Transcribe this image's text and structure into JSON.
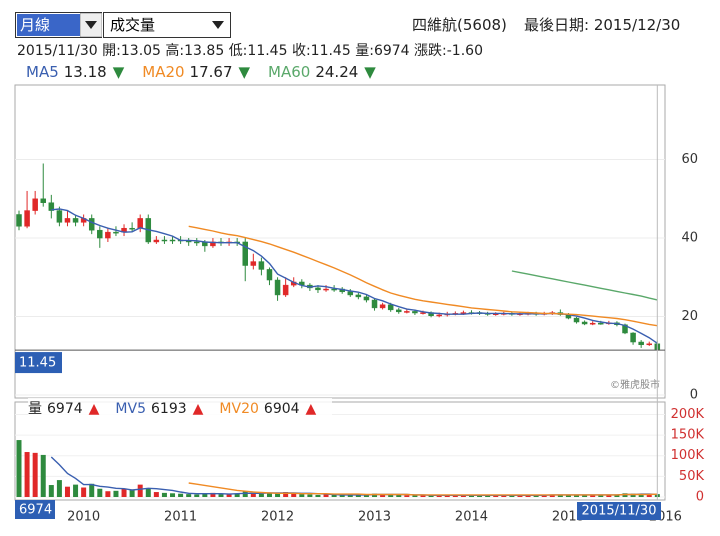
{
  "controls": {
    "period": "月線",
    "indicator": "成交量"
  },
  "header": {
    "stock": "四維航(5608)",
    "last_date_label": "最後日期:",
    "last_date": "2015/12/30",
    "date": "2015/11/30",
    "open_label": "開:",
    "high_label": "高:",
    "low_label": "低:",
    "close_label": "收:",
    "volume_label": "量:",
    "change_label": "漲跌:",
    "change": "-1.60"
  },
  "watermark": "©雅虎股市",
  "chart_data": [
    {
      "type": "candlestick",
      "categories": [
        null,
        null,
        null,
        null,
        null,
        null,
        null,
        null,
        "2010",
        null,
        null,
        null,
        null,
        null,
        null,
        null,
        null,
        null,
        null,
        null,
        "2011",
        null,
        null,
        null,
        null,
        null,
        null,
        null,
        null,
        null,
        null,
        null,
        "2012",
        null,
        null,
        null,
        null,
        null,
        null,
        null,
        null,
        null,
        null,
        null,
        "2013",
        null,
        null,
        null,
        null,
        null,
        null,
        null,
        null,
        null,
        null,
        null,
        "2014",
        null,
        null,
        null,
        null,
        null,
        null,
        null,
        null,
        null,
        null,
        null,
        "2015",
        null,
        null,
        null,
        null,
        null,
        null,
        null,
        null,
        null,
        null,
        null,
        "2016"
      ],
      "open": [
        46,
        43,
        47,
        50,
        49,
        47,
        44,
        45,
        44,
        45,
        42,
        40,
        41.5,
        41.5,
        42.5,
        42.5,
        45,
        39,
        39.5,
        39.5,
        39.5,
        39.3,
        39,
        39,
        38,
        39,
        38.8,
        39,
        39,
        33,
        34,
        32,
        29.3,
        25.5,
        28,
        28.8,
        28,
        27.3,
        26.8,
        27,
        27,
        26.3,
        25.5,
        25,
        24.2,
        22.2,
        23,
        21.7,
        21.2,
        21.3,
        20.9,
        21,
        20.2,
        20.4,
        20.7,
        20.8,
        21,
        21,
        20.8,
        20.6,
        20.7,
        20.8,
        20.6,
        20.7,
        20.8,
        20.6,
        20.8,
        21,
        20.5,
        19.6,
        18.6,
        18.1,
        18.3,
        18.2,
        18.4,
        17.9,
        15.8,
        13.5,
        12.8,
        13.05,
        null
      ],
      "high": [
        47,
        52,
        52,
        59,
        51,
        48,
        47,
        46,
        46,
        46,
        43,
        42.5,
        43,
        43.5,
        44,
        46,
        46,
        40.5,
        40.5,
        40.5,
        40.5,
        40,
        40,
        39.5,
        40,
        40,
        40,
        40,
        40,
        36,
        35,
        32.5,
        30,
        30,
        30,
        29.5,
        28.5,
        28,
        28,
        28,
        27.5,
        27,
        26,
        25.5,
        24.5,
        23.5,
        23.5,
        22.2,
        22,
        21.8,
        21.5,
        21.3,
        21,
        21.2,
        21.3,
        21.5,
        21.6,
        21.4,
        21.2,
        21.1,
        21.2,
        21.3,
        21.1,
        21.2,
        21.2,
        21.2,
        21.4,
        21.8,
        20.9,
        19.9,
        19,
        18.8,
        18.9,
        18.9,
        18.8,
        18.2,
        16,
        14,
        13.6,
        13.85,
        null
      ],
      "low": [
        42,
        42.5,
        46,
        48,
        45,
        43,
        43,
        43,
        43,
        41,
        37.5,
        39,
        40.5,
        40.5,
        41.5,
        41.5,
        38.5,
        38.5,
        38.5,
        38.5,
        38.5,
        38,
        38,
        36.5,
        37.5,
        38,
        38,
        38,
        29,
        32,
        30.5,
        28,
        24,
        25,
        27.5,
        27.2,
        26.5,
        26,
        26.3,
        26.3,
        25.8,
        25,
        24.4,
        23.6,
        21.5,
        21.8,
        21.2,
        20.7,
        20.8,
        20.4,
        20.5,
        19.8,
        19.8,
        20,
        20.3,
        20.4,
        20.5,
        20.4,
        20.2,
        20.2,
        20.3,
        20.2,
        20.2,
        20.3,
        20.2,
        20.3,
        20.4,
        20.2,
        19.3,
        18.2,
        17.8,
        17.8,
        17.9,
        17.9,
        17.5,
        15.5,
        12.8,
        12,
        12.5,
        11.45,
        null
      ],
      "close": [
        43,
        47,
        50,
        49,
        47,
        44,
        45,
        44,
        45,
        42,
        40,
        41.5,
        41.5,
        42.5,
        42.5,
        45,
        39,
        39.5,
        39.5,
        39.5,
        39.3,
        39,
        39,
        38,
        39,
        38.8,
        39,
        39,
        33,
        34,
        32,
        29.3,
        25.5,
        28,
        28.8,
        28,
        27.3,
        26.8,
        27,
        27,
        26.3,
        25.5,
        25,
        24.2,
        22.2,
        23,
        21.7,
        21.2,
        21.3,
        20.9,
        21,
        20.2,
        20.4,
        20.7,
        20.8,
        21,
        21,
        20.8,
        20.6,
        20.7,
        20.8,
        20.6,
        20.7,
        20.8,
        20.6,
        20.8,
        21,
        20.5,
        19.6,
        18.6,
        18.1,
        18.3,
        18.2,
        18.4,
        17.9,
        15.8,
        13.5,
        12.8,
        13.05,
        11.45,
        null
      ],
      "up_color": "#e02828",
      "down_color": "#2e8a3e",
      "series": [
        {
          "name": "MA5",
          "color": "#3a5fb0",
          "trend": "▼",
          "trend_color": "#2e8a3e",
          "values": [
            null,
            null,
            null,
            null,
            47.2,
            47.4,
            47,
            45.8,
            45,
            44,
            43.2,
            42.5,
            42,
            41.5,
            41.6,
            42.6,
            42.1,
            41.7,
            41.1,
            40.5,
            39.4,
            39.4,
            39.3,
            39,
            38.9,
            38.8,
            38.8,
            38.8,
            37.8,
            36.8,
            35.4,
            33.5,
            30.8,
            29.8,
            28.7,
            27.9,
            27.5,
            27.8,
            27.6,
            27.2,
            26.9,
            26.5,
            26.2,
            25.6,
            24.6,
            24,
            23.2,
            22.5,
            21.9,
            21.6,
            21.2,
            20.9,
            20.8,
            20.6,
            20.6,
            20.6,
            20.8,
            20.9,
            20.8,
            20.8,
            20.8,
            20.7,
            20.7,
            20.7,
            20.7,
            20.7,
            20.8,
            20.7,
            20.5,
            20.1,
            19.6,
            19,
            18.6,
            18.3,
            18.2,
            17.7,
            16.8,
            15.7,
            14.6,
            13.18,
            null
          ]
        },
        {
          "name": "MA20",
          "color": "#f08a24",
          "trend": "▼",
          "trend_color": "#2e8a3e",
          "values": [
            null,
            null,
            null,
            null,
            null,
            null,
            null,
            null,
            null,
            null,
            null,
            null,
            null,
            null,
            null,
            null,
            null,
            null,
            null,
            null,
            null,
            43,
            42.6,
            42.2,
            41.8,
            41.3,
            40.9,
            40.6,
            40.1,
            39.6,
            39.1,
            38.5,
            37.8,
            37.1,
            36.4,
            35.6,
            34.8,
            34,
            33.2,
            32.4,
            31.5,
            30.6,
            29.6,
            28.6,
            27.7,
            26.8,
            26,
            25.4,
            24.9,
            24.4,
            24,
            23.7,
            23.4,
            23.1,
            22.8,
            22.5,
            22.2,
            22,
            21.8,
            21.6,
            21.4,
            21.2,
            21.1,
            21,
            20.9,
            20.8,
            20.8,
            20.7,
            20.6,
            20.5,
            20.3,
            20.1,
            19.9,
            19.7,
            19.5,
            19.2,
            18.8,
            18.4,
            18,
            17.67,
            null
          ]
        },
        {
          "name": "MA60",
          "color": "#5aa86a",
          "trend": "▼",
          "trend_color": "#2e8a3e",
          "values": [
            null,
            null,
            null,
            null,
            null,
            null,
            null,
            null,
            null,
            null,
            null,
            null,
            null,
            null,
            null,
            null,
            null,
            null,
            null,
            null,
            null,
            null,
            null,
            null,
            null,
            null,
            null,
            null,
            null,
            null,
            null,
            null,
            null,
            null,
            null,
            null,
            null,
            null,
            null,
            null,
            null,
            null,
            null,
            null,
            null,
            null,
            null,
            null,
            null,
            null,
            null,
            null,
            null,
            null,
            null,
            null,
            null,
            null,
            null,
            null,
            null,
            31.6,
            31.2,
            30.8,
            30.4,
            30,
            29.6,
            29.2,
            28.8,
            28.4,
            28,
            27.6,
            27.2,
            26.8,
            26.4,
            26,
            25.6,
            25.2,
            24.7,
            24.24,
            null
          ]
        }
      ],
      "ylim": [
        0,
        79
      ],
      "yticks": [
        0,
        20,
        40,
        60
      ],
      "grid": true
    },
    {
      "type": "bar",
      "name": "量",
      "trend": "▲",
      "trend_color": "#e02828",
      "values": [
        138000,
        109000,
        107000,
        102000,
        29000,
        41000,
        25000,
        30000,
        23000,
        32000,
        20000,
        14000,
        15000,
        20000,
        18000,
        30000,
        20000,
        12000,
        10000,
        9000,
        8000,
        7000,
        6000,
        8000,
        10000,
        7000,
        6000,
        8000,
        14000,
        9000,
        8000,
        10000,
        9000,
        12000,
        9000,
        7000,
        6000,
        5000,
        6000,
        5000,
        5000,
        6000,
        5000,
        4000,
        8000,
        5000,
        6000,
        5000,
        4000,
        4000,
        5000,
        4000,
        4000,
        5000,
        4000,
        4000,
        4000,
        5000,
        4000,
        5000,
        4000,
        4000,
        5000,
        4000,
        4000,
        5000,
        6000,
        5000,
        5000,
        6000,
        5000,
        5000,
        4000,
        5000,
        6000,
        9000,
        8000,
        7000,
        6000,
        6974,
        null
      ],
      "series": [
        {
          "name": "MV5",
          "color": "#3a5fb0",
          "trend": "▲",
          "trend_color": "#e02828",
          "values": [
            null,
            null,
            null,
            null,
            97000,
            78000,
            57000,
            45000,
            30000,
            30000,
            26000,
            24000,
            21000,
            20000,
            17000,
            19000,
            21000,
            20000,
            18000,
            16000,
            12000,
            9000,
            8000,
            8000,
            8000,
            8000,
            7000,
            8000,
            9000,
            9000,
            9000,
            10000,
            10000,
            10000,
            10000,
            9000,
            9000,
            8000,
            7000,
            6000,
            5000,
            5000,
            5000,
            5000,
            6000,
            6000,
            6000,
            6000,
            6000,
            5000,
            5000,
            4000,
            4000,
            4000,
            4000,
            4000,
            4000,
            4000,
            4000,
            4000,
            4000,
            4000,
            4000,
            4000,
            4000,
            4000,
            5000,
            5000,
            5000,
            5000,
            5000,
            5000,
            5000,
            5000,
            5000,
            6000,
            6000,
            7000,
            7000,
            6193,
            null
          ]
        },
        {
          "name": "MV20",
          "color": "#f08a24",
          "trend": "▲",
          "trend_color": "#e02828",
          "values": [
            null,
            null,
            null,
            null,
            null,
            null,
            null,
            null,
            null,
            null,
            null,
            null,
            null,
            null,
            null,
            null,
            null,
            null,
            null,
            null,
            null,
            34000,
            31000,
            28000,
            25000,
            22000,
            19000,
            16000,
            14000,
            12000,
            11000,
            10000,
            9000,
            9000,
            9000,
            8000,
            8000,
            8000,
            8000,
            7000,
            7000,
            7000,
            7000,
            6000,
            6000,
            6000,
            6000,
            6000,
            6000,
            5000,
            5000,
            5000,
            5000,
            5000,
            5000,
            5000,
            5000,
            5000,
            5000,
            5000,
            5000,
            5000,
            5000,
            5000,
            5000,
            5000,
            5000,
            5000,
            5000,
            5000,
            5000,
            5000,
            5000,
            5000,
            5000,
            6000,
            6000,
            6000,
            6000,
            6904,
            null
          ]
        }
      ],
      "ylim": [
        0,
        223000
      ],
      "yticks": [
        0,
        {
          "value": 50000,
          "label": "50K"
        },
        {
          "value": 100000,
          "label": "100K"
        },
        {
          "value": 150000,
          "label": "150K"
        },
        {
          "value": 200000,
          "label": "200K"
        }
      ],
      "tick_color": "#d03030"
    }
  ]
}
